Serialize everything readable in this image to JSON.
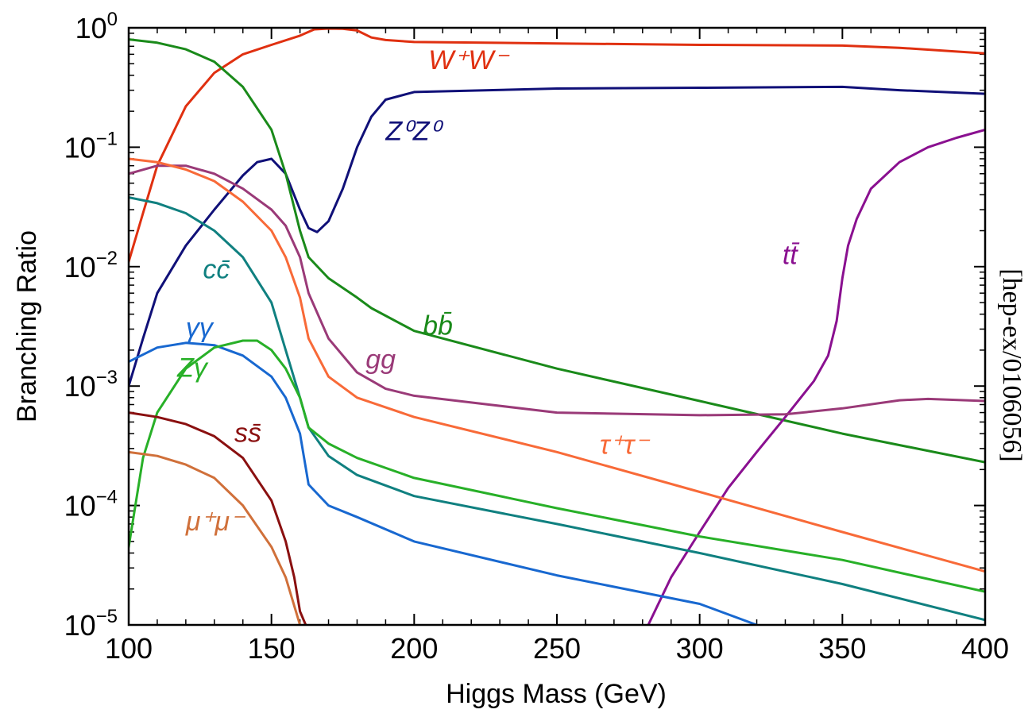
{
  "chart_data": {
    "type": "line",
    "title": "",
    "xlabel": "Higgs Mass (GeV)",
    "ylabel": "Branching Ratio",
    "annotation": "[hep-ex/0106056]",
    "xlim": [
      100,
      400
    ],
    "ylim": [
      1e-05,
      1
    ],
    "yscale": "log",
    "grid": false,
    "legend": "inline labels",
    "x_ticks": [
      100,
      150,
      200,
      250,
      300,
      350,
      400
    ],
    "x_tick_labels": [
      "100",
      "150",
      "200",
      "250",
      "300",
      "350",
      "400"
    ],
    "y_ticks": [
      {
        "value": 1,
        "base": "10",
        "exp": "0"
      },
      {
        "value": 0.1,
        "base": "10",
        "exp": "−1"
      },
      {
        "value": 0.01,
        "base": "10",
        "exp": "−2"
      },
      {
        "value": 0.001,
        "base": "10",
        "exp": "−3"
      },
      {
        "value": 0.0001,
        "base": "10",
        "exp": "−4"
      },
      {
        "value": 1e-05,
        "base": "10",
        "exp": "−5"
      }
    ],
    "series": [
      {
        "label": "W⁺W⁻",
        "color": "#e03010",
        "label_pos": [
          205,
          0.45
        ],
        "points": [
          [
            100,
            0.011
          ],
          [
            105,
            0.028
          ],
          [
            110,
            0.07
          ],
          [
            120,
            0.22
          ],
          [
            130,
            0.42
          ],
          [
            140,
            0.6
          ],
          [
            150,
            0.72
          ],
          [
            160,
            0.86
          ],
          [
            165,
            0.97
          ],
          [
            170,
            0.985
          ],
          [
            175,
            0.98
          ],
          [
            180,
            0.95
          ],
          [
            185,
            0.83
          ],
          [
            190,
            0.79
          ],
          [
            200,
            0.76
          ],
          [
            250,
            0.74
          ],
          [
            300,
            0.72
          ],
          [
            350,
            0.71
          ],
          [
            370,
            0.68
          ],
          [
            400,
            0.61
          ]
        ]
      },
      {
        "label": "Z⁰Z⁰",
        "color": "#101078",
        "label_pos": [
          190,
          0.115
        ],
        "points": [
          [
            100,
            0.001
          ],
          [
            105,
            0.0025
          ],
          [
            110,
            0.006
          ],
          [
            120,
            0.015
          ],
          [
            130,
            0.03
          ],
          [
            140,
            0.058
          ],
          [
            145,
            0.075
          ],
          [
            150,
            0.08
          ],
          [
            155,
            0.06
          ],
          [
            160,
            0.03
          ],
          [
            163,
            0.021
          ],
          [
            166,
            0.0195
          ],
          [
            170,
            0.024
          ],
          [
            175,
            0.045
          ],
          [
            180,
            0.1
          ],
          [
            185,
            0.18
          ],
          [
            190,
            0.25
          ],
          [
            200,
            0.29
          ],
          [
            250,
            0.31
          ],
          [
            300,
            0.315
          ],
          [
            350,
            0.32
          ],
          [
            370,
            0.3
          ],
          [
            400,
            0.28
          ]
        ]
      },
      {
        "label": "bb̄",
        "color": "#1a8a1a",
        "label_pos": [
          203,
          0.0027
        ],
        "points": [
          [
            100,
            0.8
          ],
          [
            110,
            0.75
          ],
          [
            120,
            0.66
          ],
          [
            130,
            0.52
          ],
          [
            140,
            0.32
          ],
          [
            150,
            0.14
          ],
          [
            155,
            0.06
          ],
          [
            160,
            0.02
          ],
          [
            163,
            0.012
          ],
          [
            170,
            0.008
          ],
          [
            180,
            0.0055
          ],
          [
            185,
            0.0045
          ],
          [
            200,
            0.0029
          ],
          [
            250,
            0.0014
          ],
          [
            300,
            0.00075
          ],
          [
            350,
            0.0004
          ],
          [
            400,
            0.00023
          ]
        ]
      },
      {
        "label": "tt̄",
        "color": "#8a1090",
        "label_pos": [
          329,
          0.0105
        ],
        "points": [
          [
            282,
            1e-05
          ],
          [
            290,
            2.5e-05
          ],
          [
            300,
            6e-05
          ],
          [
            310,
            0.00014
          ],
          [
            320,
            0.00028
          ],
          [
            330,
            0.00055
          ],
          [
            340,
            0.0011
          ],
          [
            345,
            0.0018
          ],
          [
            348,
            0.0035
          ],
          [
            350,
            0.008
          ],
          [
            352,
            0.015
          ],
          [
            355,
            0.025
          ],
          [
            360,
            0.045
          ],
          [
            370,
            0.075
          ],
          [
            380,
            0.1
          ],
          [
            390,
            0.12
          ],
          [
            400,
            0.14
          ]
        ]
      },
      {
        "label": "gg",
        "color": "#9a3a78",
        "label_pos": [
          183,
          0.0014
        ],
        "points": [
          [
            100,
            0.06
          ],
          [
            110,
            0.07
          ],
          [
            120,
            0.07
          ],
          [
            130,
            0.06
          ],
          [
            140,
            0.045
          ],
          [
            150,
            0.03
          ],
          [
            155,
            0.022
          ],
          [
            160,
            0.012
          ],
          [
            163,
            0.006
          ],
          [
            170,
            0.0025
          ],
          [
            180,
            0.0013
          ],
          [
            190,
            0.00095
          ],
          [
            200,
            0.00083
          ],
          [
            250,
            0.0006
          ],
          [
            300,
            0.00057
          ],
          [
            330,
            0.00058
          ],
          [
            350,
            0.00065
          ],
          [
            370,
            0.00076
          ],
          [
            380,
            0.00078
          ],
          [
            400,
            0.00075
          ]
        ]
      },
      {
        "label": "cc̄",
        "color": "#108080",
        "label_pos": [
          126,
          0.008
        ],
        "points": [
          [
            100,
            0.038
          ],
          [
            110,
            0.034
          ],
          [
            120,
            0.028
          ],
          [
            130,
            0.02
          ],
          [
            140,
            0.012
          ],
          [
            150,
            0.005
          ],
          [
            155,
            0.002
          ],
          [
            160,
            0.0008
          ],
          [
            163,
            0.00045
          ],
          [
            170,
            0.00026
          ],
          [
            180,
            0.00018
          ],
          [
            200,
            0.00012
          ],
          [
            250,
            7e-05
          ],
          [
            300,
            4e-05
          ],
          [
            350,
            2.2e-05
          ],
          [
            400,
            1.1e-05
          ]
        ]
      },
      {
        "label": "τ⁺τ⁻",
        "color": "#f86a38",
        "label_pos": [
          265,
          0.00027
        ],
        "points": [
          [
            100,
            0.08
          ],
          [
            110,
            0.075
          ],
          [
            120,
            0.065
          ],
          [
            130,
            0.052
          ],
          [
            140,
            0.035
          ],
          [
            150,
            0.02
          ],
          [
            155,
            0.012
          ],
          [
            160,
            0.0055
          ],
          [
            163,
            0.0025
          ],
          [
            170,
            0.0012
          ],
          [
            180,
            0.0008
          ],
          [
            200,
            0.00055
          ],
          [
            250,
            0.00028
          ],
          [
            300,
            0.00013
          ],
          [
            350,
            6e-05
          ],
          [
            400,
            2.8e-05
          ]
        ]
      },
      {
        "label": "γγ",
        "color": "#1868d0",
        "label_pos": [
          120,
          0.0026
        ],
        "points": [
          [
            100,
            0.0016
          ],
          [
            110,
            0.0021
          ],
          [
            120,
            0.0023
          ],
          [
            130,
            0.0022
          ],
          [
            140,
            0.0018
          ],
          [
            150,
            0.0012
          ],
          [
            155,
            0.0008
          ],
          [
            160,
            0.0004
          ],
          [
            163,
            0.00015
          ],
          [
            170,
            0.0001
          ],
          [
            180,
            8e-05
          ],
          [
            200,
            5e-05
          ],
          [
            250,
            2.6e-05
          ],
          [
            300,
            1.5e-05
          ],
          [
            320,
            1e-05
          ]
        ]
      },
      {
        "label": "Zγ",
        "color": "#28b028",
        "label_pos": [
          117,
          0.0012
        ],
        "points": [
          [
            100,
            4.5e-05
          ],
          [
            105,
            0.00025
          ],
          [
            110,
            0.0006
          ],
          [
            120,
            0.0014
          ],
          [
            130,
            0.0021
          ],
          [
            140,
            0.0024
          ],
          [
            145,
            0.0024
          ],
          [
            150,
            0.002
          ],
          [
            155,
            0.0014
          ],
          [
            160,
            0.0008
          ],
          [
            163,
            0.00045
          ],
          [
            170,
            0.00033
          ],
          [
            180,
            0.00025
          ],
          [
            200,
            0.00017
          ],
          [
            250,
            9.5e-05
          ],
          [
            300,
            5.5e-05
          ],
          [
            350,
            3.5e-05
          ],
          [
            400,
            1.9e-05
          ]
        ]
      },
      {
        "label": "ss̄",
        "color": "#8a1010",
        "label_pos": [
          137,
          0.00034
        ],
        "points": [
          [
            100,
            0.0006
          ],
          [
            110,
            0.00055
          ],
          [
            120,
            0.00048
          ],
          [
            130,
            0.00038
          ],
          [
            140,
            0.00025
          ],
          [
            150,
            0.00011
          ],
          [
            155,
            5e-05
          ],
          [
            158,
            2.5e-05
          ],
          [
            160,
            1.3e-05
          ],
          [
            162,
            1e-05
          ]
        ]
      },
      {
        "label": "μ⁺μ⁻",
        "color": "#d0703a",
        "label_pos": [
          120,
          6.2e-05
        ],
        "points": [
          [
            100,
            0.00028
          ],
          [
            110,
            0.00026
          ],
          [
            120,
            0.00022
          ],
          [
            130,
            0.00017
          ],
          [
            140,
            0.0001
          ],
          [
            150,
            4.5e-05
          ],
          [
            155,
            2.5e-05
          ],
          [
            160,
            1e-05
          ]
        ]
      }
    ]
  }
}
